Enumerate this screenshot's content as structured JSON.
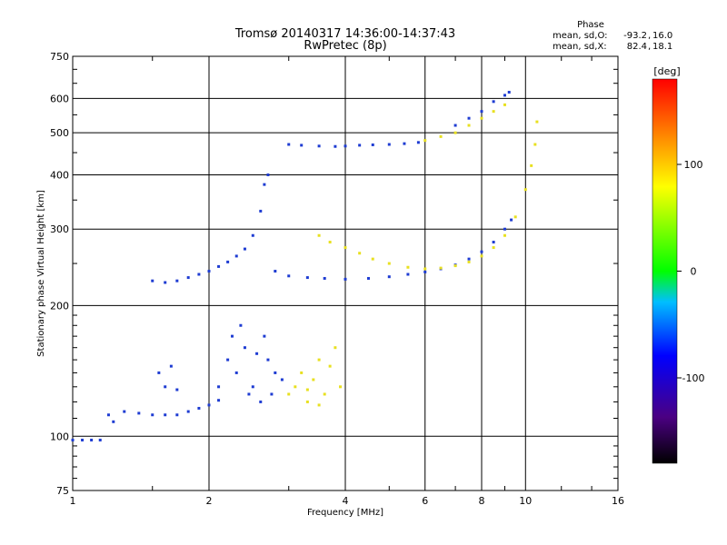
{
  "chart_data": {
    "type": "scatter",
    "title": "Tromsø 20140317 14:36:00-14:37:43",
    "subtitle": "RwPretec (8p)",
    "xlabel": "Frequency [MHz]",
    "ylabel": "Stationary phase Virtual Height [km]",
    "x_scale": "log",
    "y_scale": "log",
    "xlim": [
      1,
      16
    ],
    "ylim": [
      75,
      750
    ],
    "x_ticks": [
      1,
      2,
      4,
      6,
      8,
      10,
      16
    ],
    "y_ticks": [
      75,
      100,
      200,
      300,
      400,
      500,
      600,
      750
    ],
    "phase_header": "Phase",
    "stats": [
      {
        "label": "mean, sd,O:",
        "mean": "-93.2",
        "sd": "16.0"
      },
      {
        "label": "mean, sd,X:",
        "mean": "82.4",
        "sd": "18.1"
      }
    ],
    "colorbar": {
      "label": "[deg]",
      "min": -180,
      "max": 180,
      "ticks": [
        100,
        0,
        -100
      ]
    },
    "series": [
      {
        "phase": -90,
        "color": "#1e3cd2",
        "points": [
          [
            1.0,
            98
          ],
          [
            1.05,
            98
          ],
          [
            1.1,
            98
          ],
          [
            1.15,
            98
          ],
          [
            1.2,
            112
          ],
          [
            1.23,
            108
          ],
          [
            1.3,
            114
          ],
          [
            1.4,
            113
          ],
          [
            1.5,
            112
          ],
          [
            1.6,
            112
          ],
          [
            1.7,
            112
          ],
          [
            1.8,
            114
          ],
          [
            1.9,
            116
          ],
          [
            2.0,
            118
          ],
          [
            2.1,
            121
          ]
        ]
      },
      {
        "phase": -90,
        "color": "#1e3cd2",
        "points": [
          [
            1.5,
            228
          ],
          [
            1.6,
            226
          ],
          [
            1.7,
            228
          ],
          [
            1.8,
            232
          ],
          [
            1.9,
            236
          ],
          [
            2.0,
            240
          ],
          [
            2.1,
            246
          ],
          [
            2.2,
            252
          ],
          [
            2.3,
            260
          ],
          [
            2.4,
            270
          ],
          [
            2.5,
            290
          ],
          [
            2.6,
            330
          ],
          [
            2.65,
            380
          ],
          [
            2.7,
            400
          ]
        ]
      },
      {
        "phase": -90,
        "color": "#1e3cd2",
        "points": [
          [
            2.8,
            240
          ],
          [
            3.0,
            234
          ],
          [
            3.3,
            232
          ],
          [
            3.6,
            231
          ],
          [
            4.0,
            230
          ],
          [
            4.5,
            231
          ],
          [
            5.0,
            233
          ],
          [
            5.5,
            236
          ],
          [
            6.0,
            239
          ],
          [
            6.5,
            243
          ],
          [
            7.0,
            248
          ],
          [
            7.5,
            256
          ],
          [
            8.0,
            266
          ],
          [
            8.5,
            280
          ],
          [
            9.0,
            300
          ],
          [
            9.3,
            315
          ]
        ]
      },
      {
        "phase": -90,
        "color": "#1e3cd2",
        "points": [
          [
            3.0,
            470
          ],
          [
            3.2,
            468
          ],
          [
            3.5,
            466
          ],
          [
            3.8,
            465
          ],
          [
            4.0,
            466
          ],
          [
            4.3,
            468
          ],
          [
            4.6,
            469
          ],
          [
            5.0,
            470
          ],
          [
            5.4,
            472
          ],
          [
            5.8,
            475
          ]
        ]
      },
      {
        "phase": -90,
        "color": "#1e3cd2",
        "points": [
          [
            2.1,
            130
          ],
          [
            2.2,
            150
          ],
          [
            2.25,
            170
          ],
          [
            2.3,
            140
          ],
          [
            2.4,
            160
          ],
          [
            2.5,
            130
          ],
          [
            2.6,
            120
          ],
          [
            2.7,
            150
          ],
          [
            2.8,
            140
          ],
          [
            2.9,
            135
          ],
          [
            2.35,
            180
          ],
          [
            2.45,
            125
          ],
          [
            2.55,
            155
          ],
          [
            2.65,
            170
          ],
          [
            2.75,
            125
          ],
          [
            1.55,
            140
          ],
          [
            1.6,
            130
          ],
          [
            1.65,
            145
          ],
          [
            1.7,
            128
          ]
        ]
      },
      {
        "phase": 100,
        "color": "#e8e020",
        "points": [
          [
            3.5,
            290
          ],
          [
            3.7,
            280
          ],
          [
            4.0,
            272
          ],
          [
            4.3,
            264
          ],
          [
            4.6,
            256
          ],
          [
            5.0,
            250
          ],
          [
            5.5,
            245
          ],
          [
            6.0,
            243
          ],
          [
            6.5,
            244
          ],
          [
            7.0,
            247
          ],
          [
            7.5,
            252
          ],
          [
            8.0,
            260
          ],
          [
            8.5,
            272
          ],
          [
            9.0,
            290
          ],
          [
            9.5,
            320
          ],
          [
            10.0,
            370
          ],
          [
            10.3,
            420
          ],
          [
            10.5,
            470
          ],
          [
            10.6,
            530
          ]
        ]
      },
      {
        "phase": 100,
        "color": "#e8e020",
        "points": [
          [
            3.0,
            125
          ],
          [
            3.1,
            130
          ],
          [
            3.2,
            140
          ],
          [
            3.3,
            128
          ],
          [
            3.4,
            135
          ],
          [
            3.5,
            150
          ],
          [
            3.6,
            125
          ],
          [
            3.7,
            145
          ],
          [
            3.8,
            160
          ],
          [
            3.9,
            130
          ],
          [
            3.3,
            120
          ],
          [
            3.5,
            118
          ]
        ]
      },
      {
        "phase": 100,
        "color": "#e8e020",
        "points": [
          [
            6.0,
            480
          ],
          [
            6.5,
            490
          ],
          [
            7.0,
            500
          ],
          [
            7.5,
            520
          ],
          [
            8.0,
            540
          ],
          [
            8.5,
            560
          ],
          [
            9.0,
            580
          ]
        ]
      },
      {
        "phase": -100,
        "color": "#1e3cd2",
        "points": [
          [
            7.0,
            520
          ],
          [
            7.5,
            540
          ],
          [
            8.0,
            560
          ],
          [
            8.5,
            590
          ],
          [
            9.0,
            610
          ],
          [
            9.2,
            620
          ]
        ]
      }
    ]
  }
}
